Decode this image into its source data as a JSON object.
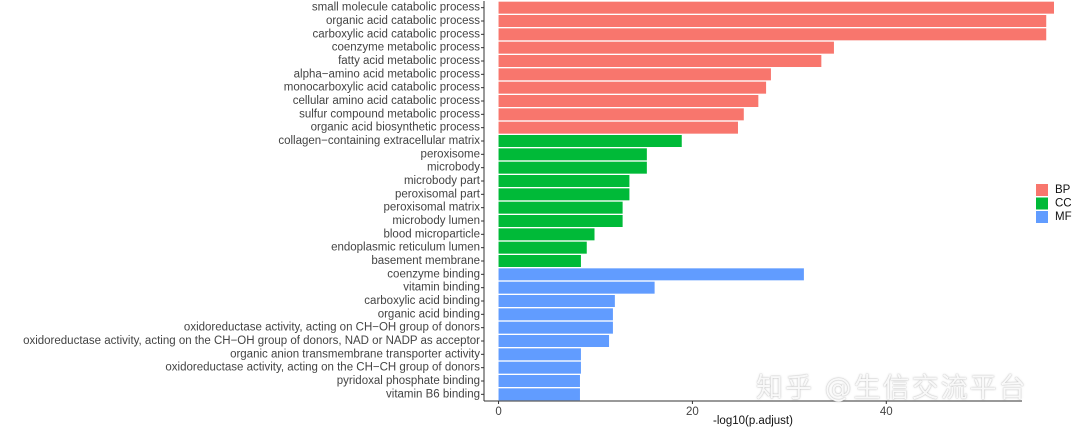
{
  "chart_data": {
    "type": "bar",
    "orientation": "horizontal",
    "xlabel": "-log10(p.adjust)",
    "xlim": [
      -1.5,
      54
    ],
    "xticks": [
      0,
      20,
      40
    ],
    "grid": false,
    "legend": {
      "placement": "right",
      "entries": [
        "BP",
        "CC",
        "MF"
      ]
    },
    "colors": {
      "BP": "#F8766D",
      "CC": "#00BA38",
      "MF": "#619CFF"
    },
    "categories": [
      "small molecule catabolic process",
      "organic acid catabolic process",
      "carboxylic acid catabolic process",
      "coenzyme metabolic process",
      "fatty acid metabolic process",
      "alpha−amino acid metabolic process",
      "monocarboxylic acid catabolic process",
      "cellular amino acid catabolic process",
      "sulfur compound metabolic process",
      "organic acid biosynthetic process",
      "collagen−containing extracellular matrix",
      "peroxisome",
      "microbody",
      "microbody part",
      "peroxisomal part",
      "peroxisomal matrix",
      "microbody lumen",
      "blood microparticle",
      "endoplasmic reticulum lumen",
      "basement membrane",
      "coenzyme binding",
      "vitamin binding",
      "carboxylic acid binding",
      "organic acid binding",
      "oxidoreductase activity, acting on CH−OH group of donors",
      "oxidoreductase activity, acting on the CH−OH group of donors, NAD or NADP as acceptor",
      "organic anion transmembrane transporter activity",
      "oxidoreductase activity, acting on the CH−CH group of donors",
      "pyridoxal phosphate binding",
      "vitamin B6 binding"
    ],
    "values": [
      57.3,
      56.5,
      56.5,
      34.6,
      33.3,
      28.1,
      27.6,
      26.8,
      25.3,
      24.7,
      18.9,
      15.3,
      15.3,
      13.5,
      13.5,
      12.8,
      12.8,
      9.9,
      9.1,
      8.5,
      31.5,
      16.1,
      12.0,
      11.8,
      11.8,
      11.4,
      8.5,
      8.5,
      8.4,
      8.4
    ],
    "groups": [
      "BP",
      "BP",
      "BP",
      "BP",
      "BP",
      "BP",
      "BP",
      "BP",
      "BP",
      "BP",
      "CC",
      "CC",
      "CC",
      "CC",
      "CC",
      "CC",
      "CC",
      "CC",
      "CC",
      "CC",
      "MF",
      "MF",
      "MF",
      "MF",
      "MF",
      "MF",
      "MF",
      "MF",
      "MF",
      "MF"
    ]
  },
  "watermark": "知乎 @生信交流平台"
}
